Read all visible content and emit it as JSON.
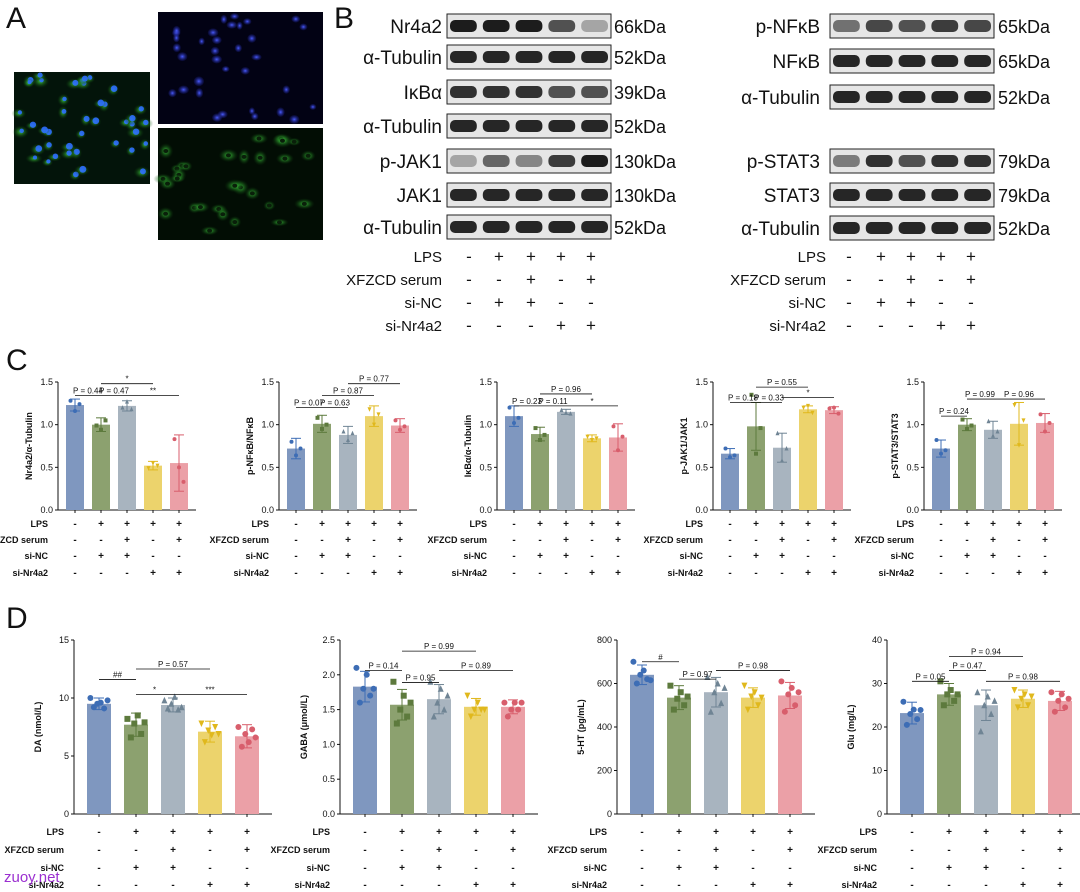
{
  "panels": {
    "A": {
      "letter": "A"
    },
    "B": {
      "letter": "B",
      "left_blots": [
        {
          "label": "Nr4a2",
          "kda": "66kDa"
        },
        {
          "label": "α-Tubulin",
          "kda": "52kDa"
        },
        {
          "label": "IκBα",
          "kda": "39kDa"
        },
        {
          "label": "α-Tubulin",
          "kda": "52kDa"
        },
        {
          "label": "p-JAK1",
          "kda": "130kDa"
        },
        {
          "label": "JAK1",
          "kda": "130kDa"
        },
        {
          "label": "α-Tubulin",
          "kda": "52kDa"
        }
      ],
      "right_blots": [
        {
          "label": "p-NFκB",
          "kda": "65kDa"
        },
        {
          "label": "NFκB",
          "kda": "65kDa"
        },
        {
          "label": "α-Tubulin",
          "kda": "52kDa"
        },
        {
          "label": "p-STAT3",
          "kda": "79kDa"
        },
        {
          "label": "STAT3",
          "kda": "79kDa"
        },
        {
          "label": "α-Tubulin",
          "kda": "52kDa"
        }
      ],
      "conditions": [
        {
          "label": "LPS",
          "signs": [
            "-",
            "+",
            "+",
            "+",
            "+"
          ]
        },
        {
          "label": "XFZCD serum",
          "signs": [
            "-",
            "-",
            "+",
            "-",
            "+"
          ]
        },
        {
          "label": "si-NC",
          "signs": [
            "-",
            "+",
            "+",
            "-",
            "-"
          ]
        },
        {
          "label": "si-Nr4a2",
          "signs": [
            "-",
            "-",
            "-",
            "+",
            "+"
          ]
        }
      ]
    },
    "C": {
      "letter": "C"
    },
    "D": {
      "letter": "D"
    }
  },
  "colors": {
    "blue": "#7f97bf",
    "green": "#8ca16f",
    "gray": "#a8b4bf",
    "yellow": "#ecd36c",
    "pink": "#eba0a7",
    "dot_blue": "#3d6db5",
    "dot_green": "#5d7a3d",
    "dot_gray": "#6f8494",
    "dot_yellow": "#e0b81c",
    "dot_pink": "#d85e6c"
  },
  "condition_rows": [
    {
      "label": "LPS",
      "signs": [
        "-",
        "+",
        "+",
        "+",
        "+"
      ]
    },
    {
      "label": "XFZCD serum",
      "signs": [
        "-",
        "-",
        "+",
        "-",
        "+"
      ]
    },
    {
      "label": "si-NC",
      "signs": [
        "-",
        "+",
        "+",
        "-",
        "-"
      ]
    },
    {
      "label": "si-Nr4a2",
      "signs": [
        "-",
        "-",
        "-",
        "+",
        "+"
      ]
    }
  ],
  "chart_data": [
    {
      "type": "bar",
      "panel": "C",
      "ylabel": "Nr4a2/α-Tubulin",
      "ylim": [
        0,
        1.5
      ],
      "yticks": [
        "0.0",
        "0.5",
        "1.0",
        "1.5"
      ],
      "ytick_values": [
        0,
        0.5,
        1.0,
        1.5
      ],
      "values": [
        1.23,
        1.0,
        1.22,
        0.52,
        0.55
      ],
      "errors": [
        0.07,
        0.08,
        0.06,
        0.05,
        0.33
      ],
      "points": [
        [
          1.28,
          1.16,
          1.24
        ],
        [
          0.99,
          0.94,
          1.05
        ],
        [
          1.2,
          1.27,
          1.18
        ],
        [
          0.49,
          0.55,
          0.52
        ],
        [
          0.83,
          0.5,
          0.33
        ]
      ],
      "annotations": [
        {
          "text": "P = 0.44",
          "from": 0,
          "to": 1,
          "y": 1.34
        },
        {
          "text": "P = 0.47",
          "from": 1,
          "to": 2,
          "y": 1.34
        },
        {
          "text": "*",
          "from": 1,
          "to": 3,
          "y": 1.48
        },
        {
          "text": "**",
          "from": 2,
          "to": 4,
          "y": 1.34
        }
      ]
    },
    {
      "type": "bar",
      "panel": "C",
      "ylabel": "p-NFκB/NFκB",
      "ylim": [
        0,
        1.5
      ],
      "yticks": [
        "0.0",
        "0.5",
        "1.0",
        "1.5"
      ],
      "ytick_values": [
        0,
        0.5,
        1.0,
        1.5
      ],
      "values": [
        0.72,
        1.01,
        0.88,
        1.1,
        0.99
      ],
      "errors": [
        0.12,
        0.1,
        0.1,
        0.12,
        0.08
      ],
      "points": [
        [
          0.8,
          0.64,
          0.72
        ],
        [
          1.08,
          0.95,
          1.0
        ],
        [
          0.92,
          0.82,
          0.9
        ],
        [
          1.18,
          1.0,
          1.12
        ],
        [
          1.05,
          0.94,
          0.98
        ]
      ],
      "annotations": [
        {
          "text": "P = 0.07",
          "from": 0,
          "to": 1,
          "y": 1.2
        },
        {
          "text": "P = 0.63",
          "from": 1,
          "to": 2,
          "y": 1.2
        },
        {
          "text": "P = 0.87",
          "from": 1,
          "to": 3,
          "y": 1.34
        },
        {
          "text": "P = 0.77",
          "from": 2,
          "to": 4,
          "y": 1.48
        }
      ]
    },
    {
      "type": "bar",
      "panel": "C",
      "ylabel": "IκBα/α-Tubulin",
      "ylim": [
        0,
        1.5
      ],
      "yticks": [
        "0.0",
        "0.5",
        "1.0",
        "1.5"
      ],
      "ytick_values": [
        0,
        0.5,
        1.0,
        1.5
      ],
      "values": [
        1.1,
        0.89,
        1.15,
        0.84,
        0.85
      ],
      "errors": [
        0.12,
        0.08,
        0.03,
        0.04,
        0.16
      ],
      "points": [
        [
          1.2,
          1.02,
          1.08
        ],
        [
          0.96,
          0.82,
          0.88
        ],
        [
          1.17,
          1.14,
          1.13
        ],
        [
          0.86,
          0.82,
          0.84
        ],
        [
          0.98,
          0.7,
          0.86
        ]
      ],
      "annotations": [
        {
          "text": "P = 0.23",
          "from": 0,
          "to": 1,
          "y": 1.22
        },
        {
          "text": "P = 0.11",
          "from": 1,
          "to": 2,
          "y": 1.22
        },
        {
          "text": "P = 0.96",
          "from": 1,
          "to": 3,
          "y": 1.36
        },
        {
          "text": "*",
          "from": 2,
          "to": 4,
          "y": 1.22
        }
      ]
    },
    {
      "type": "bar",
      "panel": "C",
      "ylabel": "p-JAK1/JAK1",
      "ylim": [
        0,
        1.5
      ],
      "yticks": [
        "0.0",
        "0.5",
        "1.0",
        "1.5"
      ],
      "ytick_values": [
        0,
        0.5,
        1.0,
        1.5
      ],
      "values": [
        0.66,
        0.98,
        0.73,
        1.18,
        1.17
      ],
      "errors": [
        0.06,
        0.28,
        0.17,
        0.04,
        0.04
      ],
      "points": [
        [
          0.72,
          0.62,
          0.64
        ],
        [
          1.35,
          0.66,
          0.96
        ],
        [
          0.9,
          0.58,
          0.72
        ],
        [
          1.2,
          1.22,
          1.14
        ],
        [
          1.19,
          1.2,
          1.13
        ]
      ],
      "annotations": [
        {
          "text": "P = 0.18",
          "from": 0,
          "to": 1,
          "y": 1.26
        },
        {
          "text": "P = 0.33",
          "from": 1,
          "to": 2,
          "y": 1.26
        },
        {
          "text": "P = 0.55",
          "from": 1,
          "to": 3,
          "y": 1.44
        },
        {
          "text": "*",
          "from": 2,
          "to": 4,
          "y": 1.32
        }
      ]
    },
    {
      "type": "bar",
      "panel": "C",
      "ylabel": "p-STAT3/STAT3",
      "ylim": [
        0,
        1.5
      ],
      "yticks": [
        "0.0",
        "0.5",
        "1.0",
        "1.5"
      ],
      "ytick_values": [
        0,
        0.5,
        1.0,
        1.5
      ],
      "values": [
        0.72,
        1.0,
        0.94,
        1.01,
        1.02
      ],
      "errors": [
        0.1,
        0.07,
        0.1,
        0.25,
        0.11
      ],
      "points": [
        [
          0.82,
          0.66,
          0.7
        ],
        [
          1.06,
          0.95,
          0.99
        ],
        [
          1.04,
          0.87,
          0.92
        ],
        [
          1.23,
          0.76,
          1.05
        ],
        [
          1.12,
          0.92,
          1.02
        ]
      ],
      "annotations": [
        {
          "text": "P = 0.24",
          "from": 0,
          "to": 1,
          "y": 1.1
        },
        {
          "text": "P = 0.99",
          "from": 1,
          "to": 2,
          "y": 1.3
        },
        {
          "text": "P = 0.96",
          "from": 2,
          "to": 4,
          "y": 1.3
        }
      ]
    },
    {
      "type": "bar",
      "panel": "D",
      "ylabel": "DA (nmol/L)",
      "ylim": [
        0,
        15
      ],
      "yticks": [
        "0",
        "5",
        "10",
        "15"
      ],
      "ytick_values": [
        0,
        5,
        10,
        15
      ],
      "values": [
        9.5,
        7.7,
        9.4,
        7.1,
        6.7
      ],
      "errors": [
        0.5,
        1.0,
        0.6,
        0.9,
        1.0
      ],
      "points": [
        [
          10.0,
          9.2,
          9.5,
          9.6,
          9.1,
          9.8
        ],
        [
          8.2,
          6.6,
          7.8,
          8.5,
          6.9,
          7.9
        ],
        [
          9.8,
          9.1,
          9.5,
          10.1,
          9.0,
          9.2
        ],
        [
          7.8,
          6.2,
          7.2,
          6.8,
          7.5,
          6.9
        ],
        [
          7.5,
          5.8,
          6.9,
          6.2,
          7.3,
          6.6
        ]
      ],
      "annotations": [
        {
          "text": "##",
          "from": 0,
          "to": 1,
          "y": 11.6
        },
        {
          "text": "*",
          "from": 1,
          "to": 2,
          "y": 10.3
        },
        {
          "text": "P = 0.57",
          "from": 1,
          "to": 3,
          "y": 12.5
        },
        {
          "text": "***",
          "from": 2,
          "to": 4,
          "y": 10.3
        }
      ]
    },
    {
      "type": "bar",
      "panel": "D",
      "ylabel": "GABA (μmol/L)",
      "ylim": [
        0,
        2.5
      ],
      "yticks": [
        "0.0",
        "0.5",
        "1.0",
        "1.5",
        "2.0",
        "2.5"
      ],
      "ytick_values": [
        0,
        0.5,
        1.0,
        1.5,
        2.0,
        2.5
      ],
      "values": [
        1.83,
        1.57,
        1.65,
        1.54,
        1.54
      ],
      "errors": [
        0.22,
        0.22,
        0.21,
        0.12,
        0.1
      ],
      "points": [
        [
          2.1,
          1.6,
          1.8,
          2.0,
          1.7,
          1.8
        ],
        [
          1.9,
          1.3,
          1.5,
          1.7,
          1.4,
          1.6
        ],
        [
          1.9,
          1.4,
          1.6,
          1.8,
          1.5,
          1.7
        ],
        [
          1.7,
          1.4,
          1.5,
          1.6,
          1.5,
          1.5
        ],
        [
          1.6,
          1.4,
          1.5,
          1.6,
          1.5,
          1.6
        ]
      ],
      "annotations": [
        {
          "text": "P = 0.14",
          "from": 0,
          "to": 1,
          "y": 2.06
        },
        {
          "text": "P = 0.95",
          "from": 1,
          "to": 2,
          "y": 1.89
        },
        {
          "text": "P = 0.99",
          "from": 1,
          "to": 3,
          "y": 2.34
        },
        {
          "text": "P = 0.89",
          "from": 2,
          "to": 4,
          "y": 2.06
        }
      ]
    },
    {
      "type": "bar",
      "panel": "D",
      "ylabel": "5-HT (pg/mL)",
      "ylim": [
        0,
        800
      ],
      "yticks": [
        "0",
        "200",
        "400",
        "600",
        "800"
      ],
      "ytick_values": [
        0,
        200,
        400,
        600,
        800
      ],
      "values": [
        640,
        535,
        560,
        535,
        545
      ],
      "errors": [
        45,
        55,
        68,
        45,
        60
      ],
      "points": [
        [
          700,
          600,
          640,
          660,
          620,
          615
        ],
        [
          590,
          480,
          530,
          560,
          500,
          540
        ],
        [
          630,
          470,
          560,
          600,
          510,
          580
        ],
        [
          590,
          480,
          540,
          560,
          500,
          535
        ],
        [
          610,
          470,
          550,
          580,
          500,
          560
        ]
      ],
      "annotations": [
        {
          "text": "#",
          "from": 0,
          "to": 1,
          "y": 700
        },
        {
          "text": "P = 0.97",
          "from": 1,
          "to": 2,
          "y": 620
        },
        {
          "text": "P = 0.98",
          "from": 2,
          "to": 4,
          "y": 660
        }
      ]
    },
    {
      "type": "bar",
      "panel": "D",
      "ylabel": "Glu (mg/L)",
      "ylim": [
        0,
        40
      ],
      "yticks": [
        "0",
        "10",
        "20",
        "30",
        "40"
      ],
      "ytick_values": [
        0,
        10,
        20,
        30,
        40
      ],
      "values": [
        23.2,
        27.5,
        25.0,
        26.5,
        26.0
      ],
      "errors": [
        2.5,
        2.5,
        3.5,
        2.0,
        2.2
      ],
      "points": [
        [
          25.8,
          20.5,
          23.0,
          24.0,
          21.8,
          23.9
        ],
        [
          30.5,
          25.0,
          27.5,
          28.5,
          26.0,
          27.5
        ],
        [
          28.0,
          19.0,
          25.0,
          27.0,
          23.0,
          26.0
        ],
        [
          28.5,
          24.5,
          26.5,
          27.5,
          25.0,
          27.0
        ],
        [
          28.0,
          23.5,
          26.0,
          27.5,
          24.5,
          26.5
        ]
      ],
      "annotations": [
        {
          "text": "P = 0.05",
          "from": 0,
          "to": 1,
          "y": 30.5
        },
        {
          "text": "P = 0.47",
          "from": 1,
          "to": 2,
          "y": 33.0
        },
        {
          "text": "P = 0.94",
          "from": 1,
          "to": 3,
          "y": 36.2
        },
        {
          "text": "P = 0.98",
          "from": 2,
          "to": 4,
          "y": 30.5
        }
      ]
    }
  ],
  "watermark": "zuoy.net"
}
